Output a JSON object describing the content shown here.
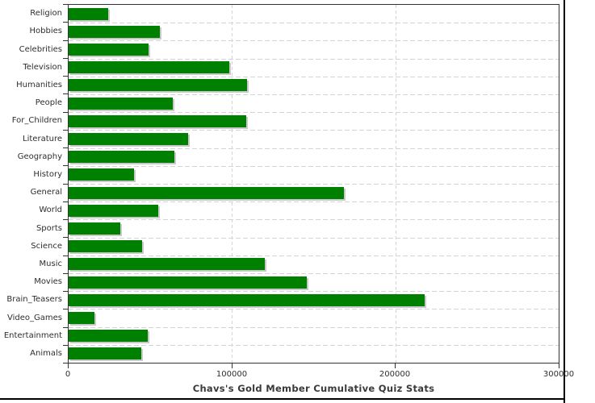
{
  "chart_data": {
    "type": "bar",
    "orientation": "horizontal",
    "title": "Chavs's Gold Member Cumulative Quiz Stats",
    "categories": [
      "Religion",
      "Hobbies",
      "Celebrities",
      "Television",
      "Humanities",
      "People",
      "For_Children",
      "Literature",
      "Geography",
      "History",
      "General",
      "World",
      "Sports",
      "Science",
      "Music",
      "Movies",
      "Brain_Teasers",
      "Video_Games",
      "Entertainment",
      "Animals"
    ],
    "values": [
      24000,
      56000,
      49000,
      98500,
      109000,
      64000,
      108500,
      73000,
      64500,
      40000,
      168500,
      55000,
      31500,
      45000,
      120000,
      146000,
      218000,
      16000,
      48500,
      44500
    ],
    "xlim": [
      0,
      300000
    ],
    "x_ticks": [
      0,
      100000,
      200000,
      300000
    ],
    "x_tick_labels": [
      "0",
      "100000",
      "200000",
      "300000"
    ],
    "grid_x_values": [
      100000,
      200000
    ],
    "grid_style": "dashed",
    "legend": "none",
    "colors": {
      "bar": "#008000",
      "bar_shadow": "#c9c9c9",
      "grid": "#d2d4d8",
      "plot_border": "#333333",
      "text": "#2e2e2e",
      "title_text": "#3a3a3a",
      "frame": "#000000",
      "background": "#ffffff"
    }
  }
}
